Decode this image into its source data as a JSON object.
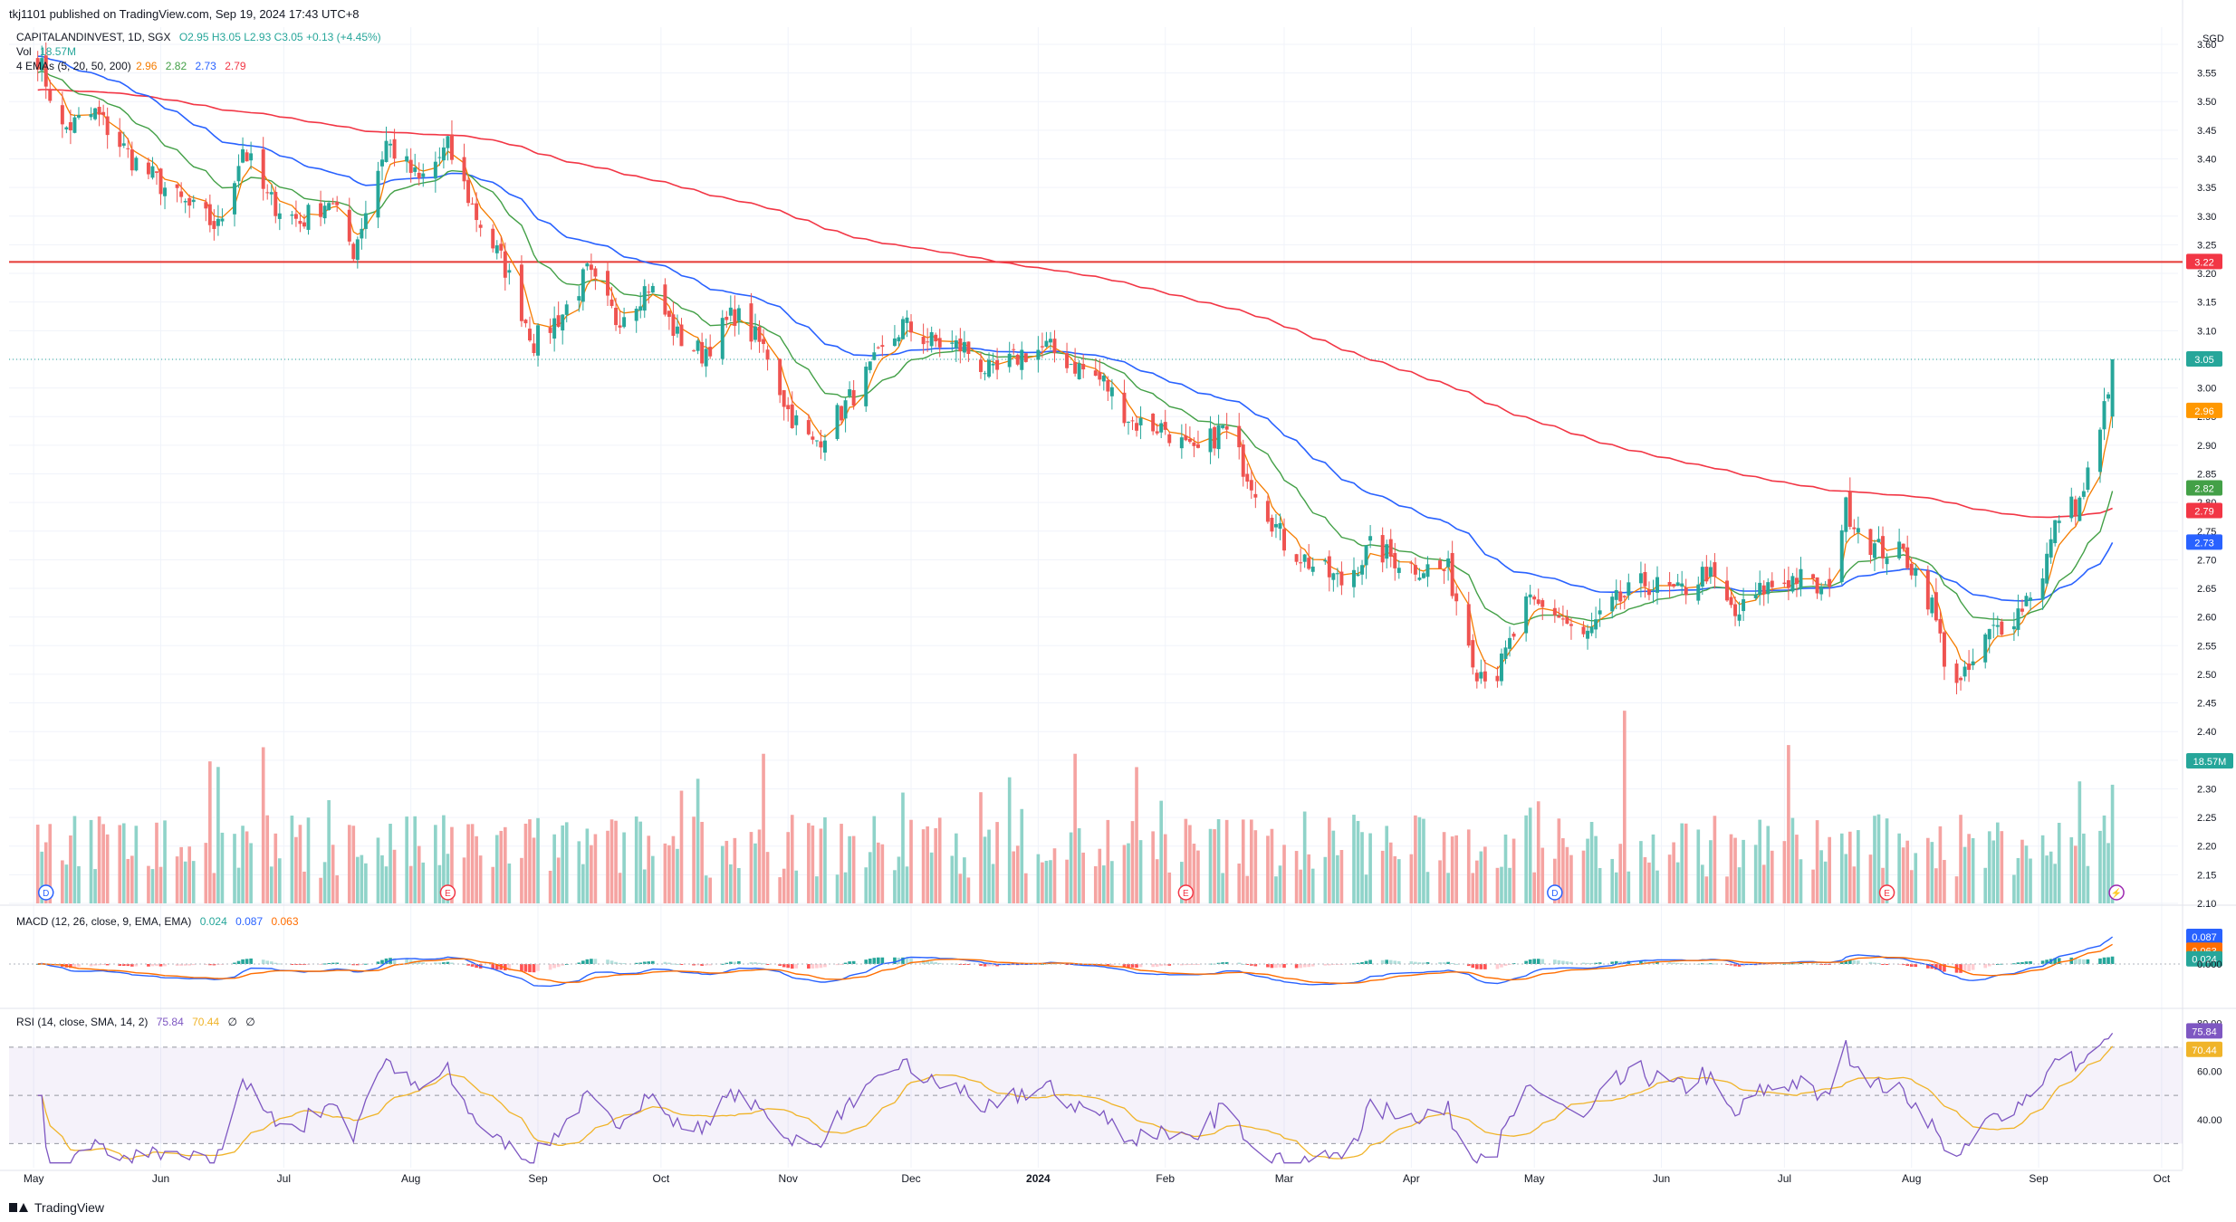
{
  "header": {
    "published": "tkj1101 published on TradingView.com, Sep 19, 2024 17:43 UTC+8",
    "symbol": "CAPITALANDINVEST, 1D, SGX",
    "ohlc": "O2.95  H3.05  L2.93  C3.05  +0.13 (+4.45%)",
    "vol_label": "Vol",
    "vol_value": "18.57M",
    "ema_label": "4 EMAs (5, 20, 50, 200)",
    "ema_values": [
      "2.96",
      "2.82",
      "2.73",
      "2.79"
    ],
    "macd_label": "MACD (12, 26, close, 9, EMA, EMA)",
    "macd_values": [
      "0.024",
      "0.087",
      "0.063"
    ],
    "rsi_label": "RSI (14, close, SMA, 14, 2)",
    "rsi_values": [
      "75.84",
      "70.44",
      "∅",
      "∅"
    ]
  },
  "footer": {
    "brand": "TradingView"
  },
  "colors": {
    "up": "#26a69a",
    "down": "#ef5350",
    "vol_up": "#8fd3c9",
    "vol_down": "#f5a3a1",
    "ema5": "#f57c00",
    "ema20": "#43a047",
    "ema50": "#2962ff",
    "ema200": "#f23645",
    "macd": "#2962ff",
    "signal": "#ff6d00",
    "rsi": "#7e57c2",
    "rsi_ma": "#f0b429",
    "resistance": "#e53935"
  },
  "chart_data": [
    {
      "type": "candlestick",
      "currency": "SGD",
      "x_labels": [
        "May",
        "Jun",
        "Jul",
        "Aug",
        "Sep",
        "Oct",
        "Nov",
        "Dec",
        "2024",
        "Feb",
        "Mar",
        "Apr",
        "May",
        "Jun",
        "Jul",
        "Aug",
        "Sep",
        "Oct"
      ],
      "y_ticks": [
        "3.60",
        "3.55",
        "3.50",
        "3.45",
        "3.40",
        "3.35",
        "3.30",
        "3.25",
        "3.20",
        "3.15",
        "3.10",
        "3.05",
        "3.00",
        "2.95",
        "2.90",
        "2.85",
        "2.80",
        "2.75",
        "2.70",
        "2.65",
        "2.60",
        "2.55",
        "2.50",
        "2.45",
        "2.40",
        "2.35",
        "2.30",
        "2.25",
        "2.20",
        "2.15",
        "2.10"
      ],
      "ylim": [
        2.1,
        3.63
      ],
      "price_path": [
        [
          "2023-05-01",
          3.6
        ],
        [
          "2023-05-08",
          3.45
        ],
        [
          "2023-05-16",
          3.48
        ],
        [
          "2023-05-25",
          3.4
        ],
        [
          "2023-06-05",
          3.33
        ],
        [
          "2023-06-15",
          3.28
        ],
        [
          "2023-06-21",
          3.42
        ],
        [
          "2023-06-27",
          3.33
        ],
        [
          "2023-07-05",
          3.29
        ],
        [
          "2023-07-12",
          3.33
        ],
        [
          "2023-07-18",
          3.24
        ],
        [
          "2023-07-26",
          3.43
        ],
        [
          "2023-08-03",
          3.36
        ],
        [
          "2023-08-10",
          3.42
        ],
        [
          "2023-08-17",
          3.3
        ],
        [
          "2023-08-24",
          3.21
        ],
        [
          "2023-08-31",
          3.08
        ],
        [
          "2023-09-07",
          3.13
        ],
        [
          "2023-09-13",
          3.2
        ],
        [
          "2023-09-20",
          3.12
        ],
        [
          "2023-09-28",
          3.18
        ],
        [
          "2023-10-05",
          3.09
        ],
        [
          "2023-10-11",
          3.06
        ],
        [
          "2023-10-19",
          3.13
        ],
        [
          "2023-10-27",
          3.06
        ],
        [
          "2023-11-01",
          2.96
        ],
        [
          "2023-11-07",
          2.9
        ],
        [
          "2023-11-14",
          2.96
        ],
        [
          "2023-11-21",
          3.03
        ],
        [
          "2023-11-29",
          3.11
        ],
        [
          "2023-12-06",
          3.08
        ],
        [
          "2023-12-14",
          3.07
        ],
        [
          "2023-12-21",
          3.02
        ],
        [
          "2023-12-28",
          3.06
        ],
        [
          "2024-01-03",
          3.07
        ],
        [
          "2024-01-10",
          3.04
        ],
        [
          "2024-01-17",
          3.01
        ],
        [
          "2024-01-24",
          2.94
        ],
        [
          "2024-02-01",
          2.93
        ],
        [
          "2024-02-08",
          2.88
        ],
        [
          "2024-02-15",
          2.93
        ],
        [
          "2024-02-22",
          2.84
        ],
        [
          "2024-03-01",
          2.73
        ],
        [
          "2024-03-08",
          2.69
        ],
        [
          "2024-03-15",
          2.66
        ],
        [
          "2024-03-22",
          2.72
        ],
        [
          "2024-04-01",
          2.69
        ],
        [
          "2024-04-10",
          2.68
        ],
        [
          "2024-04-17",
          2.51
        ],
        [
          "2024-04-22",
          2.5
        ],
        [
          "2024-04-29",
          2.62
        ],
        [
          "2024-05-06",
          2.61
        ],
        [
          "2024-05-13",
          2.56
        ],
        [
          "2024-05-20",
          2.62
        ],
        [
          "2024-05-28",
          2.66
        ],
        [
          "2024-06-05",
          2.64
        ],
        [
          "2024-06-12",
          2.68
        ],
        [
          "2024-06-19",
          2.6
        ],
        [
          "2024-06-26",
          2.65
        ],
        [
          "2024-07-04",
          2.67
        ],
        [
          "2024-07-11",
          2.64
        ],
        [
          "2024-07-16",
          2.79
        ],
        [
          "2024-07-23",
          2.72
        ],
        [
          "2024-07-30",
          2.71
        ],
        [
          "2024-08-02",
          2.68
        ],
        [
          "2024-08-06",
          2.62
        ],
        [
          "2024-08-09",
          2.53
        ],
        [
          "2024-08-13",
          2.48
        ],
        [
          "2024-08-20",
          2.57
        ],
        [
          "2024-08-27",
          2.61
        ],
        [
          "2024-09-02",
          2.68
        ],
        [
          "2024-09-06",
          2.78
        ],
        [
          "2024-09-11",
          2.8
        ],
        [
          "2024-09-16",
          2.92
        ],
        [
          "2024-09-19",
          3.05
        ]
      ],
      "last": {
        "open": 2.95,
        "high": 3.05,
        "low": 2.93,
        "close": 3.05,
        "change": 0.13,
        "change_pct": 4.45
      },
      "volume_last": "18.57M",
      "ema_last": {
        "ema5": 2.96,
        "ema20": 2.82,
        "ema50": 2.73,
        "ema200": 2.79
      },
      "resistance_level": 3.22,
      "price_labels": [
        "3.22",
        "3.05",
        "2.96",
        "2.82",
        "2.79",
        "2.73",
        "18.57M"
      ],
      "event_markers": [
        "D",
        "E",
        "E",
        "D",
        "E"
      ]
    },
    {
      "type": "line",
      "name": "MACD (12, 26, close, 9, EMA, EMA)",
      "last": {
        "histogram": 0.024,
        "macd": 0.087,
        "signal": 0.063
      },
      "y_ticks": [
        "0.000"
      ],
      "price_labels": [
        "0.087",
        "0.063",
        "0.024",
        "0.000"
      ]
    },
    {
      "type": "line",
      "name": "RSI (14, close, SMA, 14, 2)",
      "last": {
        "rsi": 75.84,
        "rsi_ma": 70.44
      },
      "y_ticks": [
        "80.00",
        "60.00",
        "40.00"
      ],
      "bands": [
        70,
        50,
        30
      ],
      "price_labels": [
        "75.84",
        "70.44"
      ]
    }
  ]
}
